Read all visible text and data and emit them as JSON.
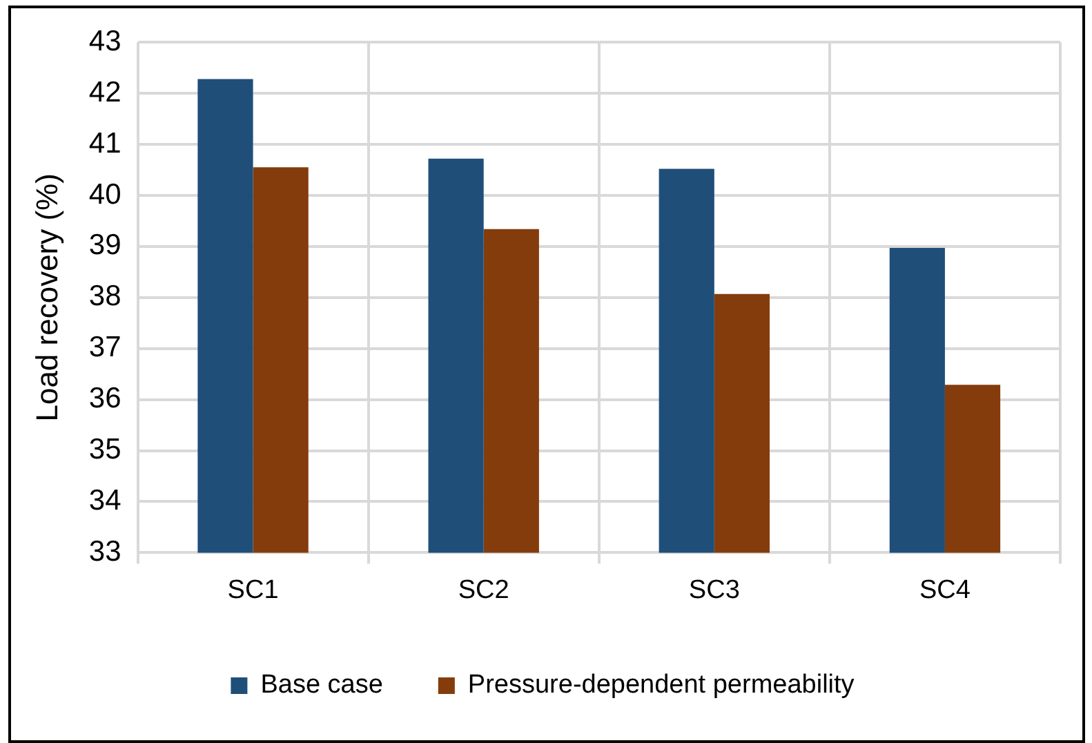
{
  "chart_data": {
    "type": "bar",
    "ylabel": "Load recovery (%)",
    "categories": [
      "SC1",
      "SC2",
      "SC3",
      "SC4"
    ],
    "series": [
      {
        "name": "Base case",
        "color": "#1f4e79",
        "values": [
          42.28,
          40.72,
          40.52,
          38.97
        ]
      },
      {
        "name": "Pressure-dependent permeability",
        "color": "#843c0c",
        "values": [
          40.55,
          39.34,
          38.07,
          36.29
        ]
      }
    ],
    "ylim": [
      33,
      43
    ],
    "yticks": [
      33,
      34,
      35,
      36,
      37,
      38,
      39,
      40,
      41,
      42,
      43
    ],
    "grid": true,
    "legend": "bottom"
  }
}
